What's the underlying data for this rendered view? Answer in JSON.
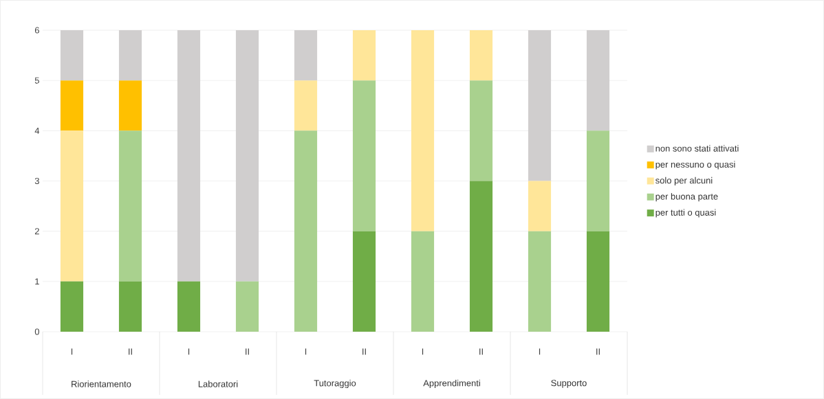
{
  "chart_data": {
    "type": "bar",
    "stacked": true,
    "categories": [
      "I",
      "II",
      "I",
      "II",
      "I",
      "II",
      "I",
      "II",
      "I",
      "II"
    ],
    "annotations": [
      "Riorientamento",
      "Laboratori",
      "Tutoraggio",
      "Apprendimenti",
      "Supporto"
    ],
    "series": [
      {
        "name": "per tutti o quasi",
        "color": "#70ad47",
        "values": [
          1,
          1,
          1,
          0,
          0,
          2,
          0,
          3,
          0,
          2
        ]
      },
      {
        "name": "per buona parte",
        "color": "#a9d18e",
        "values": [
          0,
          3,
          0,
          1,
          4,
          3,
          2,
          2,
          2,
          2
        ]
      },
      {
        "name": "solo per alcuni",
        "color": "#ffe699",
        "values": [
          3,
          0,
          0,
          0,
          1,
          1,
          4,
          1,
          1,
          0
        ]
      },
      {
        "name": "per nessuno o quasi",
        "color": "#ffc000",
        "values": [
          1,
          1,
          0,
          0,
          0,
          0,
          0,
          0,
          0,
          0
        ]
      },
      {
        "name": "non sono stati attivati",
        "color": "#d0cece",
        "values": [
          1,
          1,
          5,
          5,
          1,
          0,
          0,
          0,
          3,
          2
        ]
      }
    ],
    "ylim": [
      0,
      6
    ],
    "yticks": [
      0,
      1,
      2,
      3,
      4,
      5,
      6
    ],
    "grid": "y",
    "legend": "right"
  }
}
